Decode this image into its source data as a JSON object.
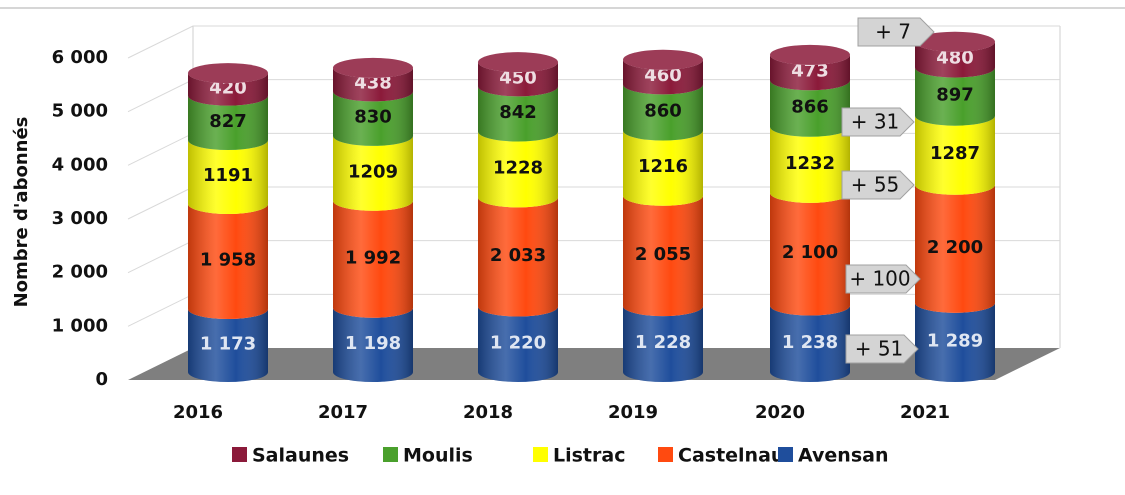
{
  "chart_data": {
    "type": "stacked_cylinder",
    "y_label": "Nombre d'abonnés",
    "categories": [
      "2016",
      "2017",
      "2018",
      "2019",
      "2020",
      "2021"
    ],
    "series": [
      {
        "name": "Avensan",
        "color": "#1f4e9c",
        "label_color": "#dfe6f2",
        "values": [
          1173,
          1198,
          1220,
          1228,
          1238,
          1289
        ],
        "value_labels": [
          "1 173",
          "1 198",
          "1 220",
          "1 228",
          "1 238",
          "1 289"
        ]
      },
      {
        "name": "Castelnau",
        "color": "#ff4a10",
        "label_color": "#111111",
        "values": [
          1958,
          1992,
          2033,
          2055,
          2100,
          2200
        ],
        "value_labels": [
          "1 958",
          "1 992",
          "2 033",
          "2 055",
          "2 100",
          "2 200"
        ]
      },
      {
        "name": "Listrac",
        "color": "#ffff00",
        "label_color": "#111111",
        "values": [
          1191,
          1209,
          1228,
          1216,
          1232,
          1287
        ]
      },
      {
        "name": "Moulis",
        "color": "#4aa02c",
        "label_color": "#111111",
        "values": [
          827,
          830,
          842,
          860,
          866,
          897
        ]
      },
      {
        "name": "Salaunes",
        "color": "#8b1a3a",
        "label_color": "#eedde2",
        "values": [
          420,
          438,
          450,
          460,
          473,
          480
        ]
      }
    ],
    "ylim": [
      0,
      6000
    ],
    "yticks": [
      0,
      {
        "value": 1000,
        "label": "1 000"
      },
      {
        "value": 2000,
        "label": "2 000"
      },
      {
        "value": 3000,
        "label": "3 000"
      },
      {
        "value": 4000,
        "label": "4 000"
      },
      {
        "value": 5000,
        "label": "5 000"
      },
      {
        "value": 6000,
        "label": "6 000"
      }
    ],
    "grid": true,
    "legend": "bottom",
    "annotations": [
      "+ 7",
      "+ 31",
      "+ 55",
      "+ 100",
      "+ 51"
    ]
  }
}
